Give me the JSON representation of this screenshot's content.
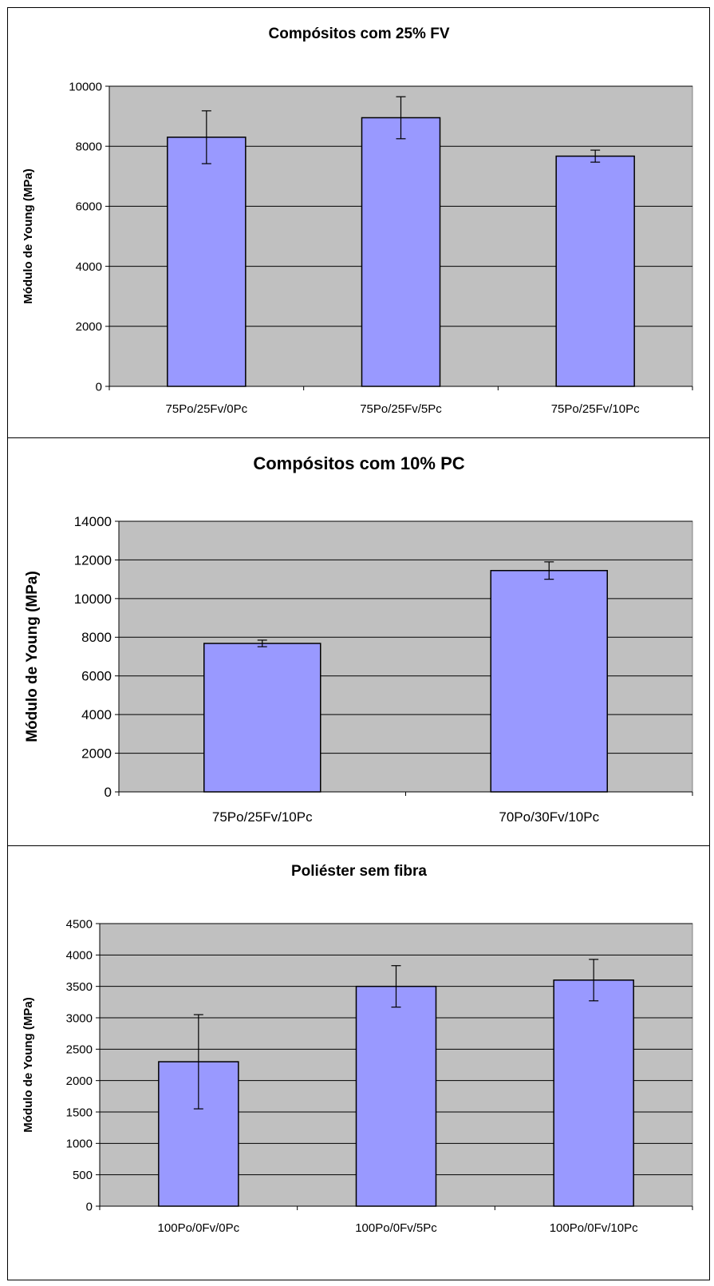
{
  "colors": {
    "plot_background": "#c0c0c0",
    "bar_fill": "#9999ff",
    "bar_stroke": "#000000",
    "gridline": "#000000",
    "frame": "#000000"
  },
  "chart_data": [
    {
      "type": "bar",
      "title": "Compósitos com 25% FV",
      "xlabel": "",
      "ylabel": "Módulo de Young (MPa)",
      "categories": [
        "75Po/25Fv/0Pc",
        "75Po/25Fv/5Pc",
        "75Po/25Fv/10Pc"
      ],
      "values": [
        8300,
        8950,
        7670
      ],
      "error": [
        880,
        700,
        200
      ],
      "ylim": [
        0,
        10000
      ],
      "yticks": [
        "0",
        "2000",
        "4000",
        "6000",
        "8000",
        "10000"
      ],
      "grid": true,
      "legend": "none"
    },
    {
      "type": "bar",
      "title": "Compósitos com 10% PC",
      "xlabel": "",
      "ylabel": "Módulo de Young (MPa)",
      "categories": [
        "75Po/25Fv/10Pc",
        "70Po/30Fv/10Pc"
      ],
      "values": [
        7680,
        11450
      ],
      "error": [
        170,
        450
      ],
      "ylim": [
        0,
        14000
      ],
      "yticks": [
        "0",
        "2000",
        "4000",
        "6000",
        "8000",
        "10000",
        "12000",
        "14000"
      ],
      "grid": true,
      "legend": "none"
    },
    {
      "type": "bar",
      "title": "Poliéster sem fibra",
      "xlabel": "",
      "ylabel": "Módulo de Young (MPa)",
      "categories": [
        "100Po/0Fv/0Pc",
        "100Po/0Fv/5Pc",
        "100Po/0Fv/10Pc"
      ],
      "values": [
        2300,
        3500,
        3600
      ],
      "error": [
        750,
        330,
        330
      ],
      "ylim": [
        0,
        4500
      ],
      "yticks": [
        "0",
        "500",
        "1000",
        "1500",
        "2000",
        "2500",
        "3000",
        "3500",
        "4000",
        "4500"
      ],
      "grid": true,
      "legend": "none"
    }
  ]
}
